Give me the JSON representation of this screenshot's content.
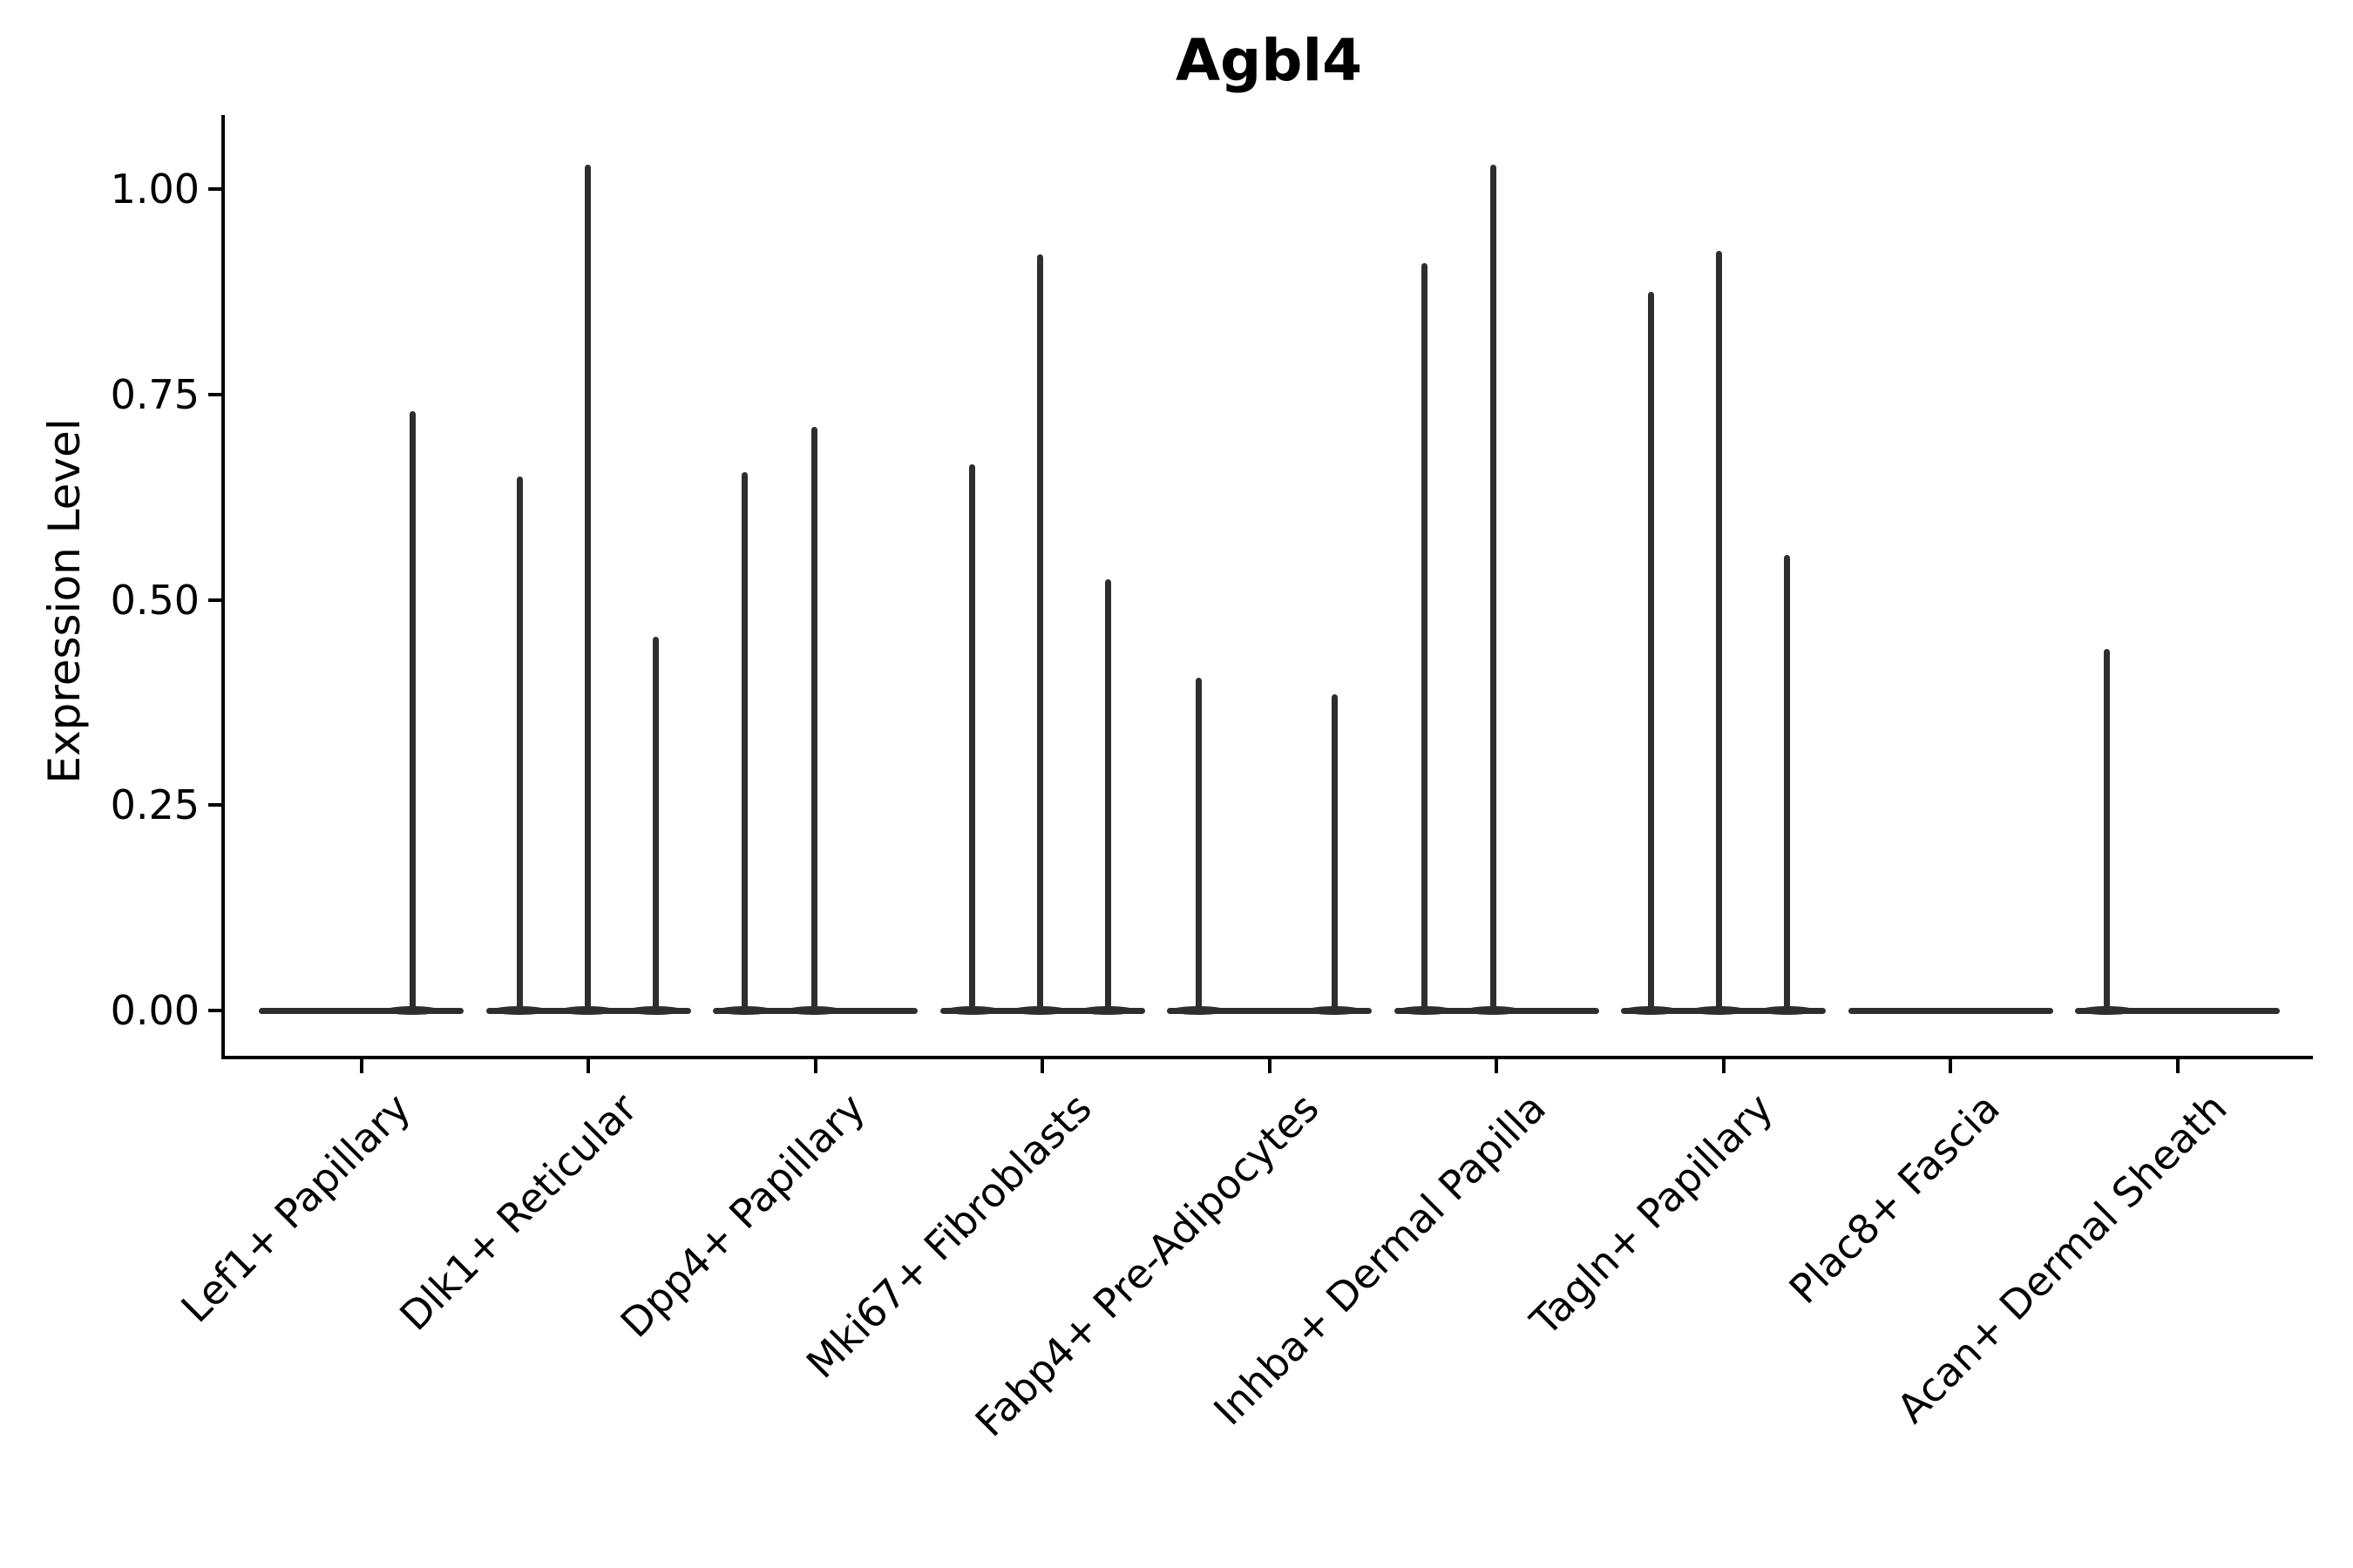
{
  "chart_data": {
    "type": "violin",
    "title": "Agbl4",
    "ylabel": "Expression Level",
    "xlabel": "",
    "ylim": [
      -0.055,
      1.09
    ],
    "grid": false,
    "legend": false,
    "line_color": "#2e2e2e",
    "axis_color": "#000000",
    "description": "Violin plot of Agbl4 expression per fibroblast cluster; density is concentrated at 0 (flat bases) with thin spikes reaching the maximum expression values of sub-violins.",
    "y_ticks": [
      {
        "label": "0.00",
        "value": 0
      },
      {
        "label": "0.25",
        "value": 0.25
      },
      {
        "label": "0.50",
        "value": 0.5
      },
      {
        "label": "0.75",
        "value": 0.75
      },
      {
        "label": "1.00",
        "value": 1.0
      }
    ],
    "categories": [
      {
        "label": "Lef1+ Papillary",
        "spikes": [
          {
            "pos": 0.749,
            "max": 0.73
          }
        ]
      },
      {
        "label": "Dlk1+ Reticular",
        "spikes": [
          {
            "pos": 0.164,
            "max": 0.65
          },
          {
            "pos": 0.496,
            "max": 1.03
          },
          {
            "pos": 0.828,
            "max": 0.455
          }
        ]
      },
      {
        "label": "Dpp4+ Papillary",
        "spikes": [
          {
            "pos": 0.157,
            "max": 0.655
          },
          {
            "pos": 0.494,
            "max": 0.71
          }
        ]
      },
      {
        "label": "Mki67+ Fibroblasts",
        "spikes": [
          {
            "pos": 0.159,
            "max": 0.665
          },
          {
            "pos": 0.489,
            "max": 0.92
          },
          {
            "pos": 0.82,
            "max": 0.525
          }
        ]
      },
      {
        "label": "Fabp4+ Pre-Adipocytes",
        "spikes": [
          {
            "pos": 0.154,
            "max": 0.405
          },
          {
            "pos": 0.818,
            "max": 0.385
          }
        ]
      },
      {
        "label": "Inhba+ Dermal Papilla",
        "spikes": [
          {
            "pos": 0.151,
            "max": 0.91
          },
          {
            "pos": 0.483,
            "max": 1.03
          }
        ]
      },
      {
        "label": "Tagln+ Papillary",
        "spikes": [
          {
            "pos": 0.146,
            "max": 0.875
          },
          {
            "pos": 0.478,
            "max": 0.925
          },
          {
            "pos": 0.811,
            "max": 0.555
          }
        ]
      },
      {
        "label": "Plac8+ Fascia",
        "spikes": []
      },
      {
        "label": "Acan+ Dermal Sheath",
        "spikes": [
          {
            "pos": 0.157,
            "max": 0.44
          }
        ]
      }
    ]
  }
}
